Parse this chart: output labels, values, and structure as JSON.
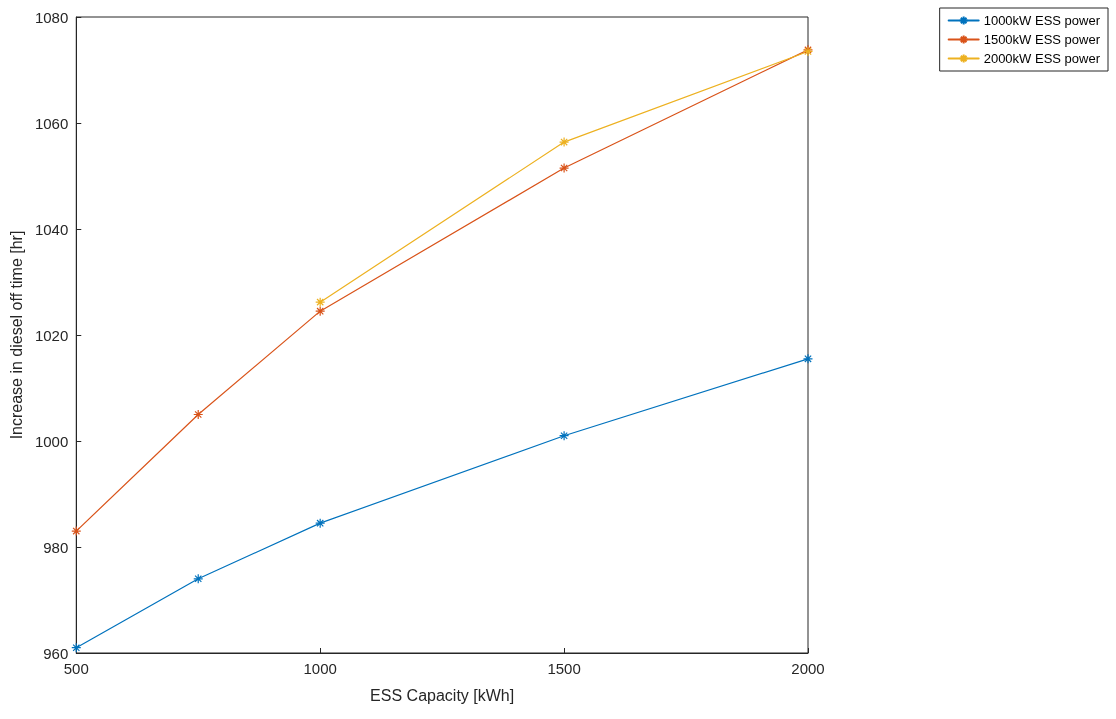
{
  "chart_data": {
    "type": "line",
    "xlabel": "ESS Capacity [kWh]",
    "ylabel": "Increase in diesel off time [hr]",
    "series": [
      {
        "name": "1000kW ESS power",
        "color": "#0072bd",
        "x": [
          500,
          750,
          1000,
          1500,
          2000
        ],
        "values": [
          961,
          974,
          984.5,
          1001,
          1015.5
        ]
      },
      {
        "name": "1500kW ESS power",
        "color": "#d95319",
        "x": [
          500,
          750,
          1000,
          1500,
          2000
        ],
        "values": [
          983,
          1005,
          1024.5,
          1051.5,
          1073.8
        ]
      },
      {
        "name": "2000kW ESS power",
        "color": "#edb120",
        "x": [
          1000,
          1500,
          2000
        ],
        "values": [
          1026.2,
          1056.4,
          1073.5
        ]
      }
    ],
    "xlim": [
      500,
      2000
    ],
    "xticks": [
      500,
      1000,
      1500,
      2000
    ],
    "ylim": [
      960,
      1080
    ],
    "yticks": [
      960,
      980,
      1000,
      1020,
      1040,
      1060,
      1080
    ],
    "grid": false,
    "legend": "top right",
    "marker": "cross",
    "line_style": "solid"
  }
}
